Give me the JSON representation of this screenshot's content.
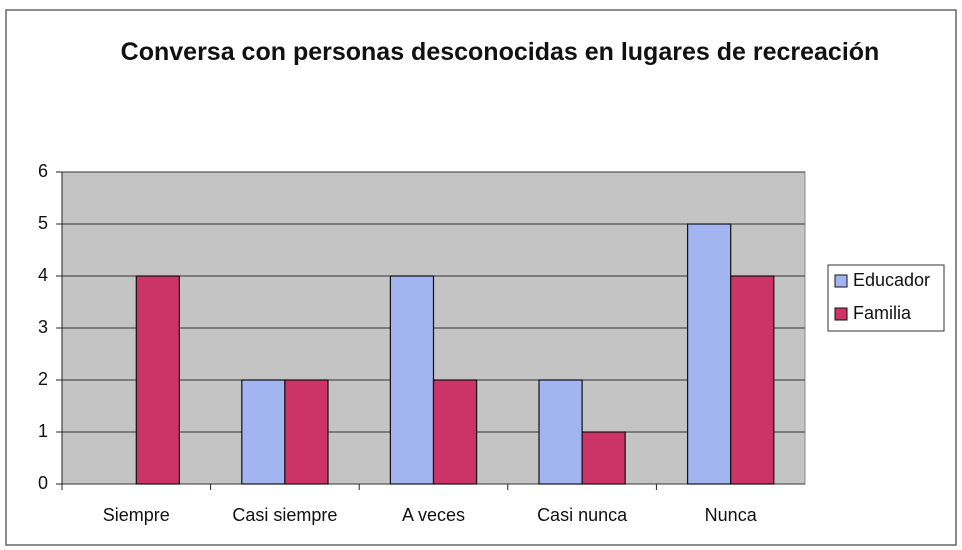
{
  "chart_data": {
    "type": "bar",
    "title": "Conversa con personas desconocidas en lugares de recreación",
    "categories": [
      "Siempre",
      "Casi siempre",
      "A veces",
      "Casi nunca",
      "Nunca"
    ],
    "series": [
      {
        "name": "Educador",
        "color": "#a3b5f0",
        "values": [
          0,
          2,
          4,
          2,
          5
        ]
      },
      {
        "name": "Familia",
        "color": "#cc3366",
        "values": [
          4,
          2,
          2,
          1,
          4
        ]
      }
    ],
    "ylim": [
      0,
      6
    ],
    "yticks": [
      0,
      1,
      2,
      3,
      4,
      5,
      6
    ],
    "grid": true,
    "legend": "right"
  }
}
